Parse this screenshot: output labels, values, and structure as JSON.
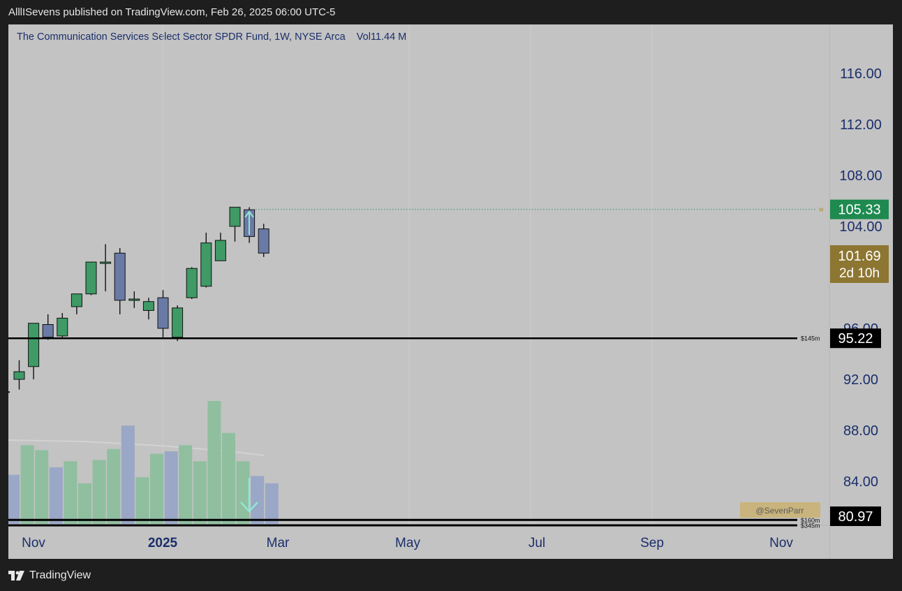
{
  "header": {
    "publish_text": "AlllISevens published on TradingView.com, Feb 26, 2025 06:00 UTC-5"
  },
  "footer": {
    "brand": "TradingView",
    "logo_icon": "tradingview-logo-icon"
  },
  "chart_data": {
    "type": "candlestick",
    "title": "The Communication Services Select Sector SPDR Fund, 1W, NYSE Arca",
    "volume_label": "Vol",
    "volume_value": "11.44 M",
    "y_ticks": [
      "116.00",
      "112.00",
      "108.00",
      "104.00",
      "96.00",
      "92.00",
      "88.00",
      "84.00"
    ],
    "x_ticks": [
      {
        "label": "Nov",
        "bold": false
      },
      {
        "label": "2025",
        "bold": true
      },
      {
        "label": "Mar",
        "bold": false
      },
      {
        "label": "May",
        "bold": false
      },
      {
        "label": "Jul",
        "bold": false
      },
      {
        "label": "Sep",
        "bold": false
      },
      {
        "label": "Nov",
        "bold": false
      }
    ],
    "candles": [
      {
        "o": 92.0,
        "h": 93.5,
        "l": 91.2,
        "c": 92.6,
        "dir": "up"
      },
      {
        "o": 93.0,
        "h": 96.4,
        "l": 92.0,
        "c": 96.4,
        "dir": "up"
      },
      {
        "o": 96.3,
        "h": 97.1,
        "l": 95.1,
        "c": 95.3,
        "dir": "down"
      },
      {
        "o": 95.4,
        "h": 97.2,
        "l": 95.3,
        "c": 96.8,
        "dir": "up"
      },
      {
        "o": 97.7,
        "h": 98.7,
        "l": 97.1,
        "c": 98.7,
        "dir": "up"
      },
      {
        "o": 98.7,
        "h": 101.2,
        "l": 98.6,
        "c": 101.2,
        "dir": "up"
      },
      {
        "o": 101.2,
        "h": 102.6,
        "l": 98.9,
        "c": 101.2,
        "dir": "up"
      },
      {
        "o": 101.9,
        "h": 102.3,
        "l": 97.1,
        "c": 98.2,
        "dir": "down"
      },
      {
        "o": 98.3,
        "h": 98.9,
        "l": 97.6,
        "c": 98.2,
        "dir": "up"
      },
      {
        "o": 97.4,
        "h": 98.4,
        "l": 96.7,
        "c": 98.1,
        "dir": "up"
      },
      {
        "o": 98.4,
        "h": 99.0,
        "l": 95.3,
        "c": 96.0,
        "dir": "down"
      },
      {
        "o": 95.3,
        "h": 97.8,
        "l": 95.0,
        "c": 97.6,
        "dir": "up"
      },
      {
        "o": 98.4,
        "h": 100.8,
        "l": 98.3,
        "c": 100.7,
        "dir": "up"
      },
      {
        "o": 99.3,
        "h": 103.5,
        "l": 99.2,
        "c": 102.7,
        "dir": "up"
      },
      {
        "o": 101.3,
        "h": 103.5,
        "l": 101.3,
        "c": 102.9,
        "dir": "up"
      },
      {
        "o": 104.0,
        "h": 105.5,
        "l": 102.8,
        "c": 105.5,
        "dir": "up"
      },
      {
        "o": 105.3,
        "h": 105.5,
        "l": 102.7,
        "c": 103.2,
        "dir": "down"
      },
      {
        "o": 103.8,
        "h": 104.2,
        "l": 101.6,
        "c": 101.9,
        "dir": "down"
      }
    ],
    "volume_bars": [
      {
        "v": 0.4,
        "dir": "down",
        "clipped": true
      },
      {
        "v": 0.64,
        "dir": "up"
      },
      {
        "v": 0.6,
        "dir": "up"
      },
      {
        "v": 0.46,
        "dir": "down"
      },
      {
        "v": 0.51,
        "dir": "up"
      },
      {
        "v": 0.33,
        "dir": "up"
      },
      {
        "v": 0.52,
        "dir": "up"
      },
      {
        "v": 0.61,
        "dir": "up"
      },
      {
        "v": 0.8,
        "dir": "down"
      },
      {
        "v": 0.38,
        "dir": "up"
      },
      {
        "v": 0.57,
        "dir": "up"
      },
      {
        "v": 0.59,
        "dir": "down"
      },
      {
        "v": 0.64,
        "dir": "up"
      },
      {
        "v": 0.51,
        "dir": "up"
      },
      {
        "v": 1.0,
        "dir": "up"
      },
      {
        "v": 0.74,
        "dir": "up"
      },
      {
        "v": 0.51,
        "dir": "up"
      },
      {
        "v": 0.39,
        "dir": "down"
      },
      {
        "v": 0.33,
        "dir": "down"
      }
    ],
    "levels": [
      {
        "price": 95.22,
        "label": "$145m",
        "tag": "95.22"
      },
      {
        "price": 80.97,
        "label": "$160m",
        "tag": "80.97"
      },
      {
        "price": 80.55,
        "label": "$345m",
        "tag": ""
      }
    ],
    "high_line": {
      "price": 105.33,
      "tag": "105.33",
      "marker": "w"
    },
    "last_price": {
      "price": 101.69,
      "tag": "101.69",
      "countdown": "2d 10h"
    },
    "watermark": "@SevenParr",
    "annotations": {
      "up_arrow": "arrow-up-icon",
      "down_arrow": "arrow-down-icon"
    }
  }
}
